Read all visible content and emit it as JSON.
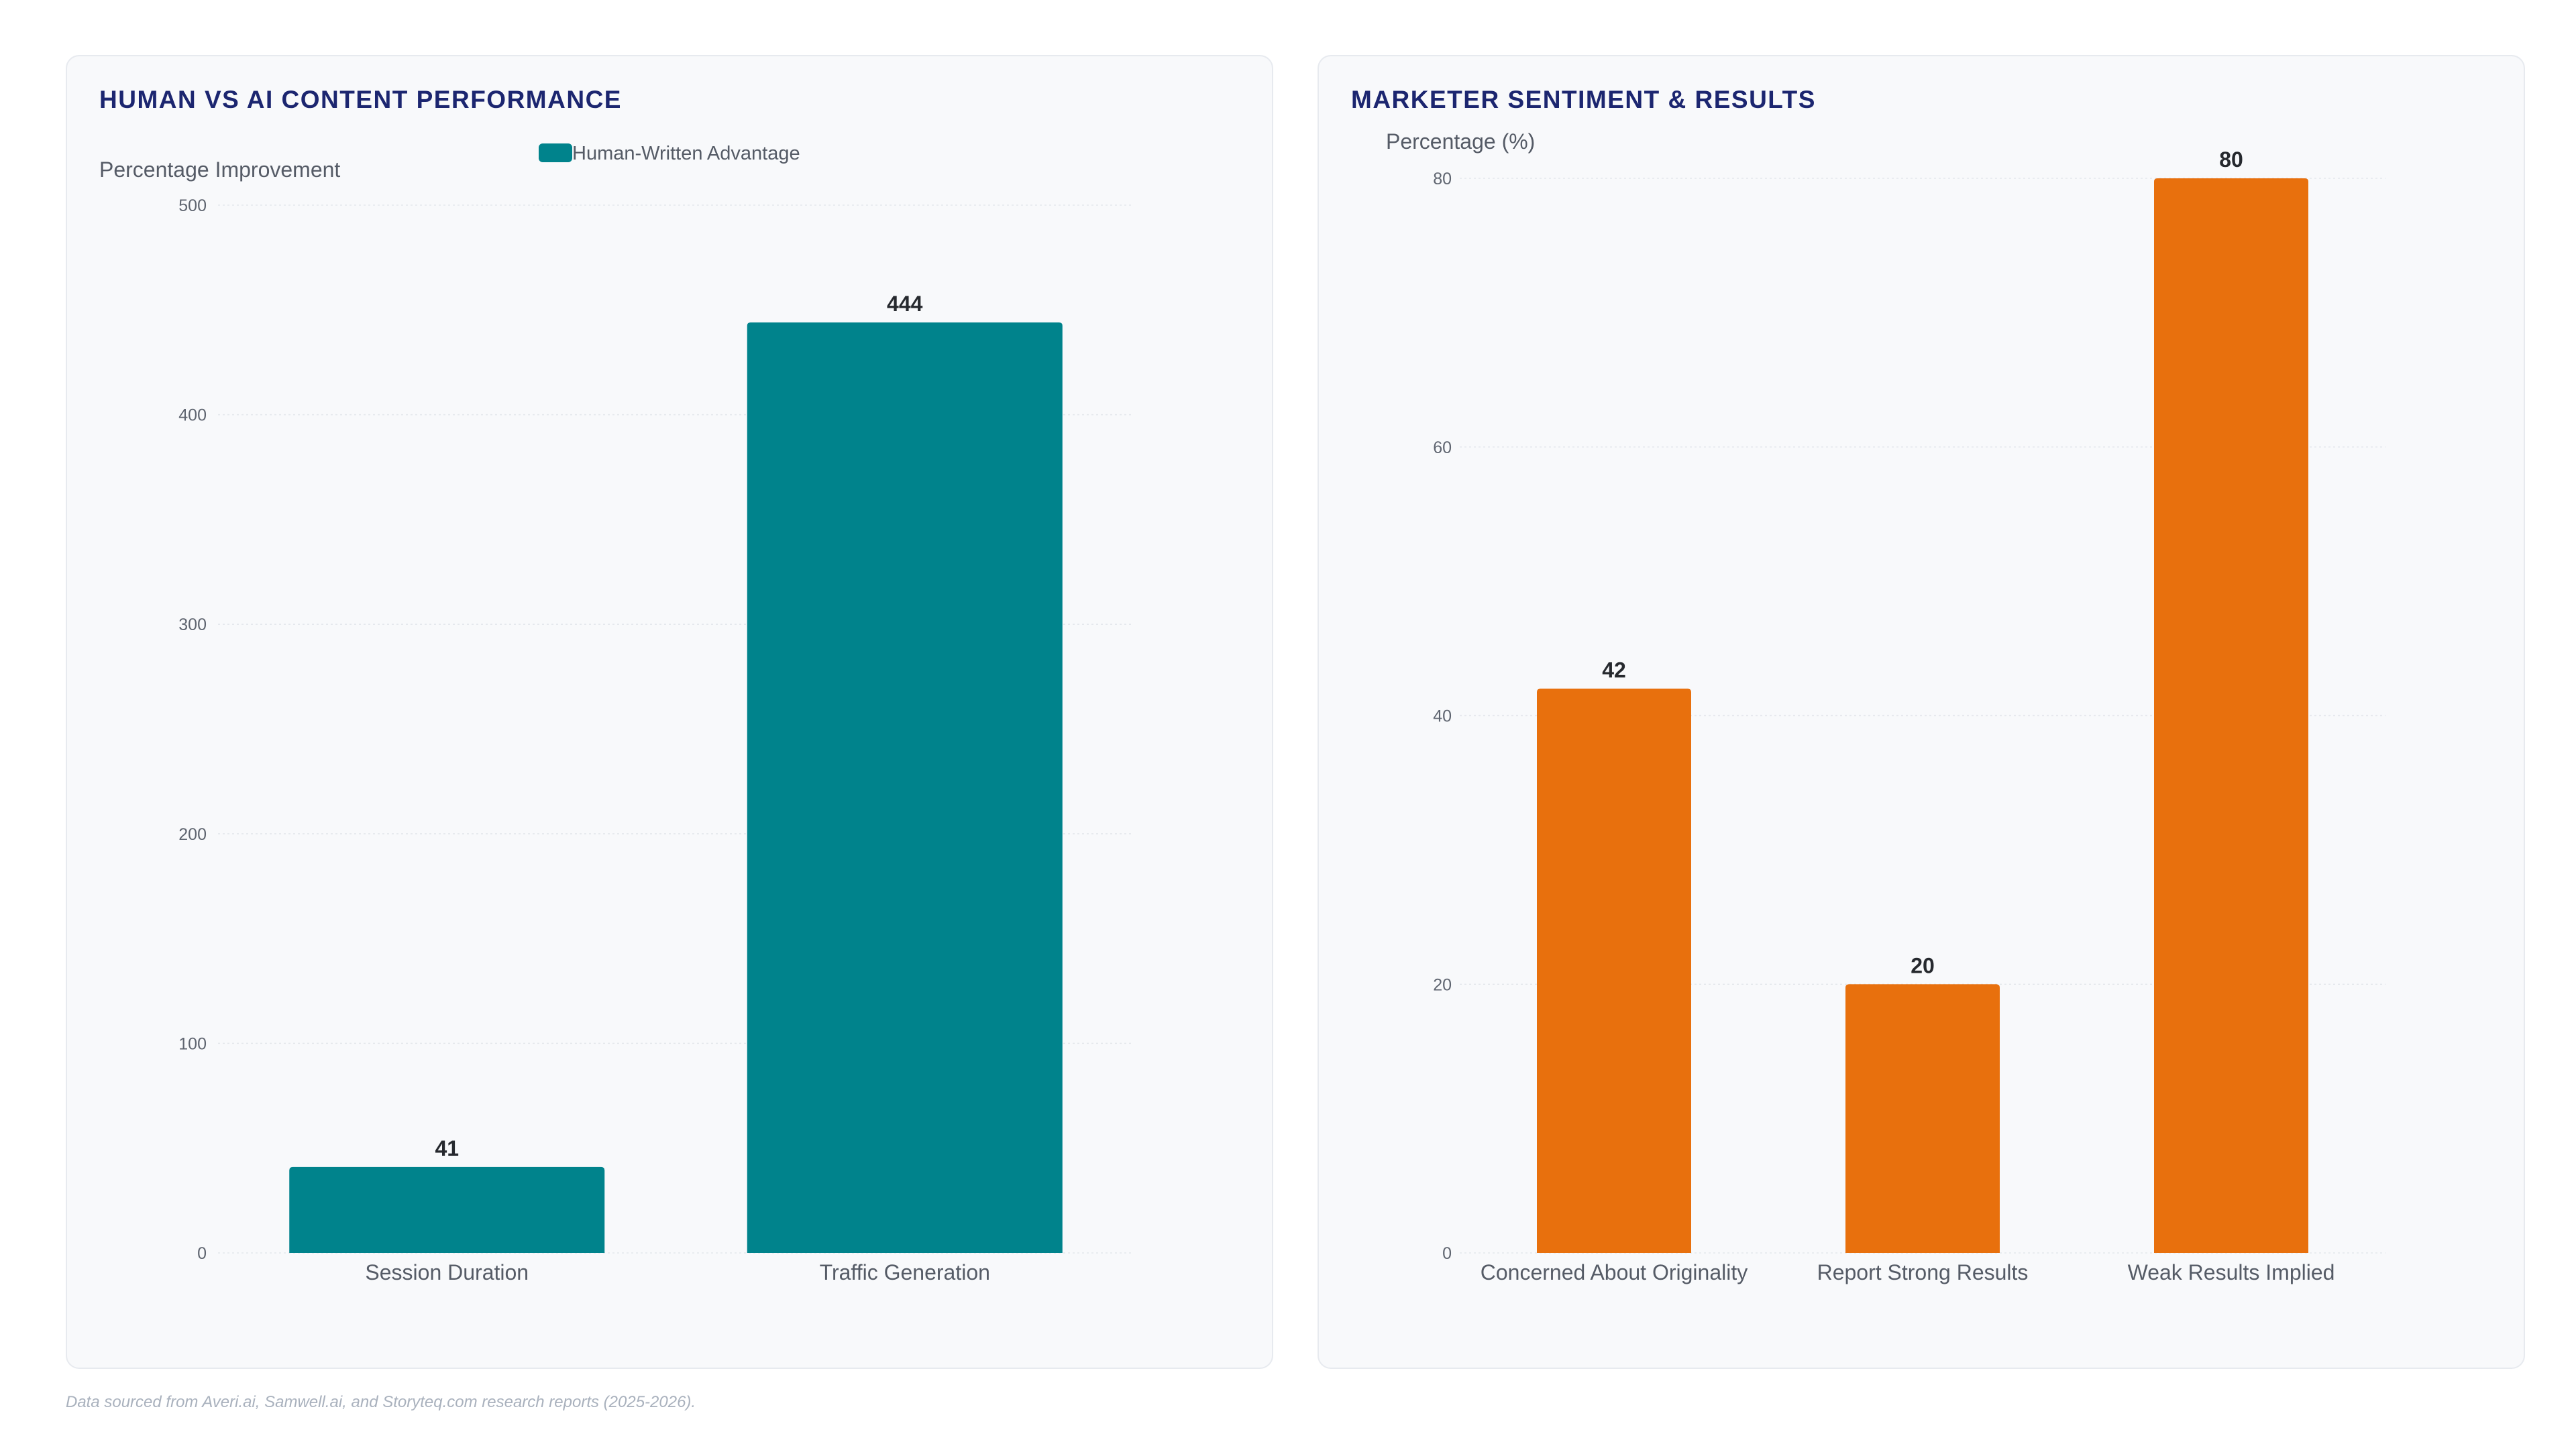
{
  "footer": "Data sourced from Averi.ai, Samwell.ai, and Storyteq.com research reports (2025-2026).",
  "chart_data": [
    {
      "type": "bar",
      "title": "HUMAN VS AI CONTENT PERFORMANCE",
      "legend": [
        "Human-Written Advantage"
      ],
      "legend_position": "top-center",
      "ylabel": "Percentage Improvement",
      "xlabel": "",
      "categories": [
        "Session Duration",
        "Traffic Generation"
      ],
      "series": [
        {
          "name": "Human-Written Advantage",
          "values": [
            41,
            444
          ],
          "color": "#00838c"
        }
      ],
      "data_labels": [
        "41",
        "444"
      ],
      "ylim": [
        0,
        500
      ],
      "yticks": [
        "0",
        "100",
        "200",
        "300",
        "400",
        "500"
      ],
      "grid": true
    },
    {
      "type": "bar",
      "title": "MARKETER SENTIMENT & RESULTS",
      "ylabel": "Percentage (%)",
      "xlabel": "",
      "categories": [
        "Concerned About Originality",
        "Report Strong Results",
        "Weak Results Implied"
      ],
      "series": [
        {
          "values": [
            42,
            20,
            80
          ],
          "color": "#e8700d"
        }
      ],
      "data_labels": [
        "42",
        "20",
        "80"
      ],
      "ylim": [
        0,
        80
      ],
      "yticks": [
        "0",
        "20",
        "40",
        "60",
        "80"
      ],
      "grid": true
    }
  ]
}
